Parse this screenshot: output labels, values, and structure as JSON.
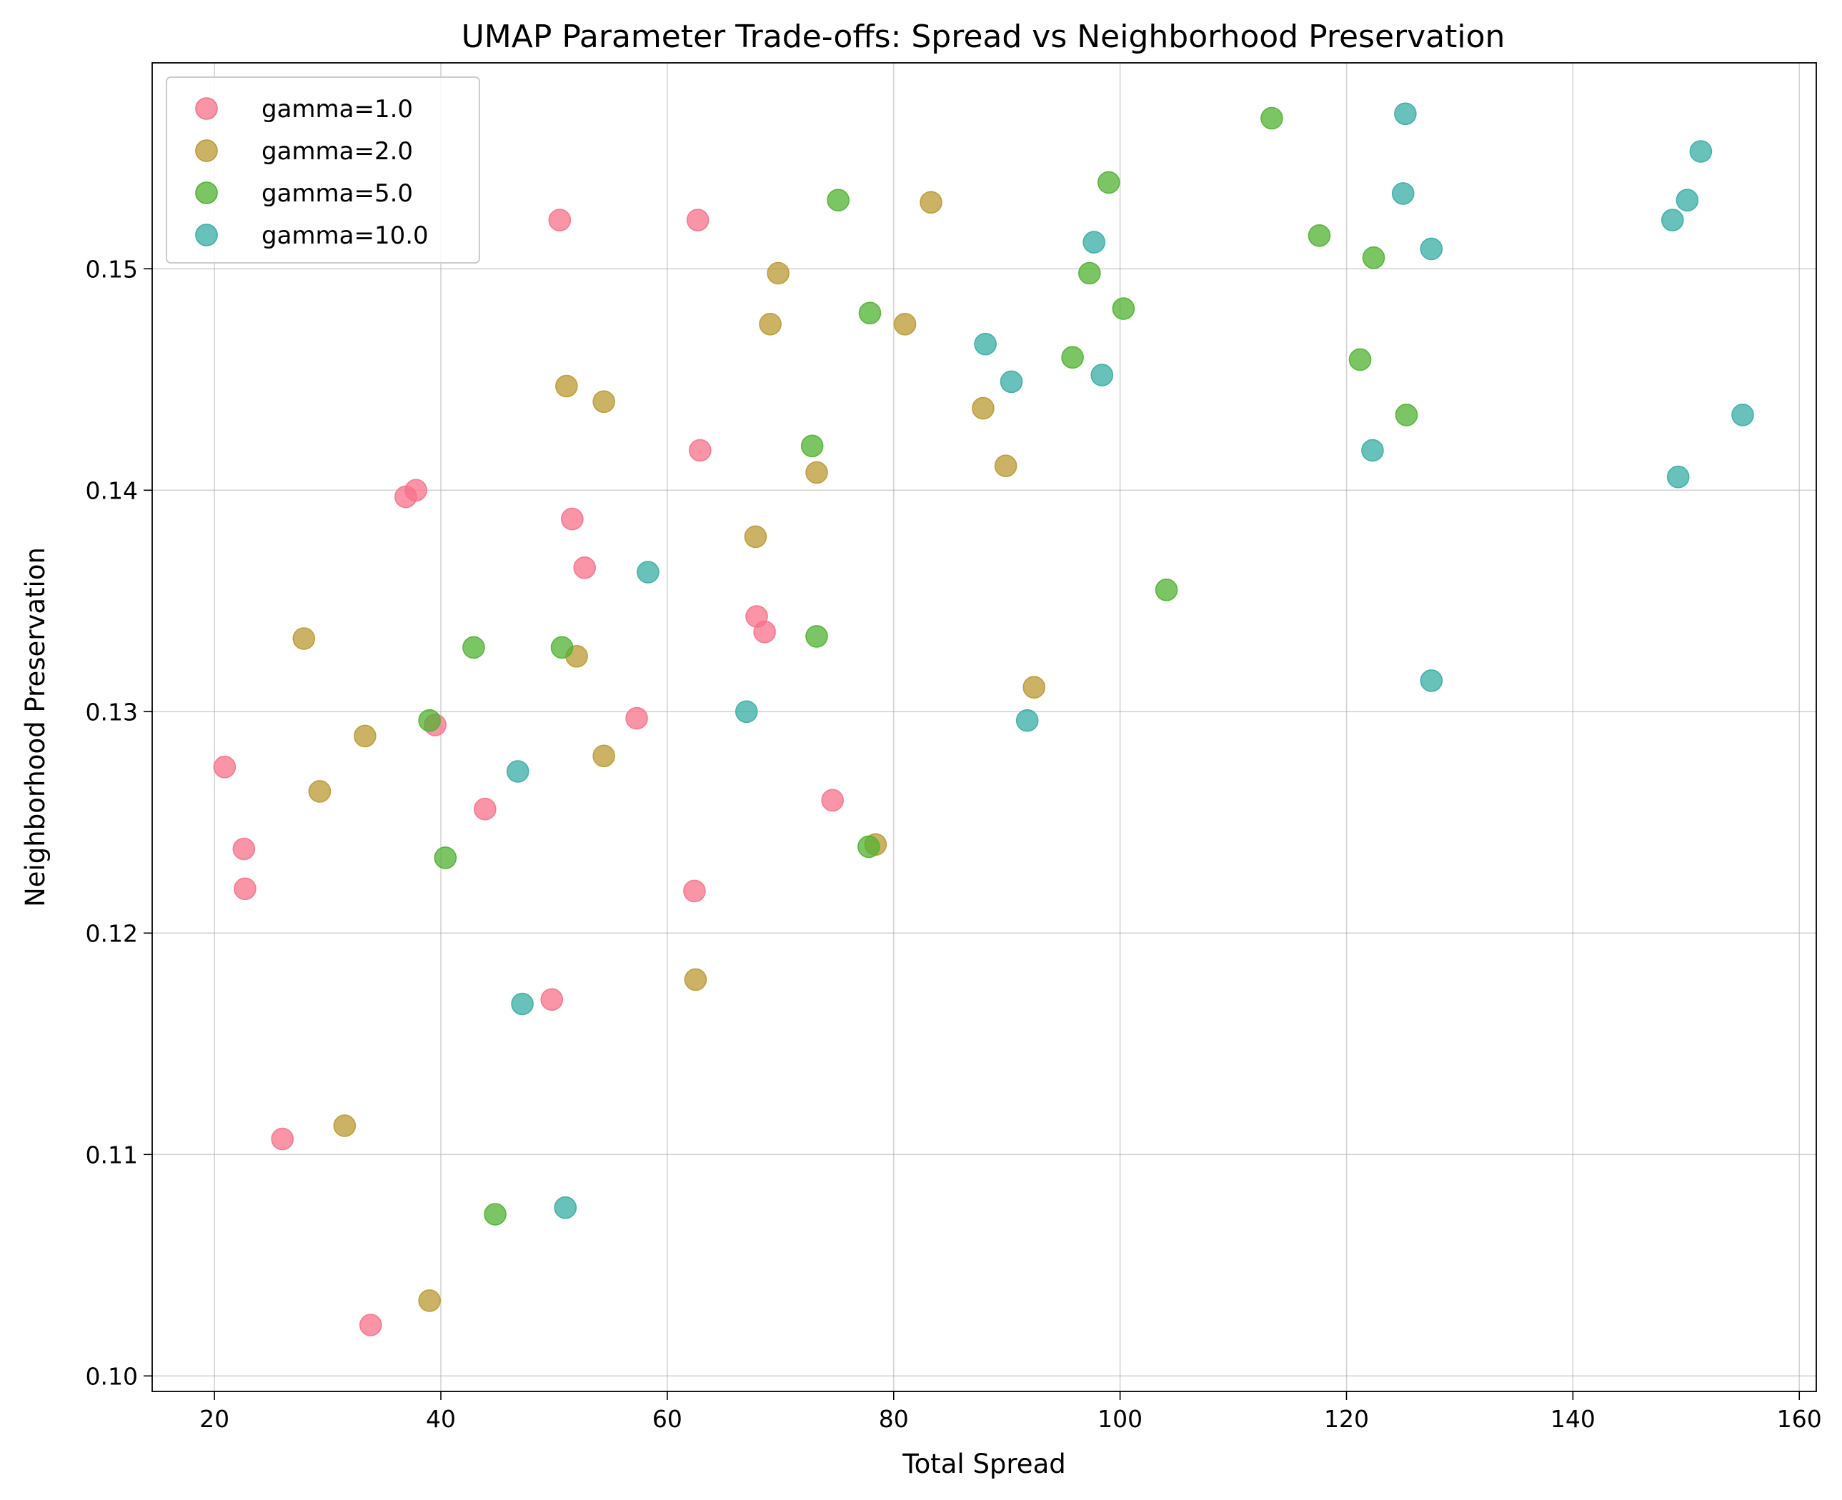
{
  "chart_data": {
    "type": "scatter",
    "title": "UMAP Parameter Trade-offs: Spread vs Neighborhood Preservation",
    "xlabel": "Total Spread",
    "ylabel": "Neighborhood Preservation",
    "xlim": [
      14.5,
      161.5
    ],
    "ylim": [
      0.0993,
      0.1593
    ],
    "x_ticks": [
      20,
      40,
      60,
      80,
      100,
      120,
      140,
      160
    ],
    "y_ticks": [
      0.1,
      0.11,
      0.12,
      0.13,
      0.14,
      0.15
    ],
    "x_tick_labels": [
      "20",
      "40",
      "60",
      "80",
      "100",
      "120",
      "140",
      "160"
    ],
    "y_tick_labels": [
      "0.10",
      "0.11",
      "0.12",
      "0.13",
      "0.14",
      "0.15"
    ],
    "grid": true,
    "legend_position": "top-left",
    "series": [
      {
        "name": "gamma=1.0",
        "color": "#f77189",
        "points": [
          [
            50.5,
            0.1522
          ],
          [
            62.7,
            0.1522
          ],
          [
            62.9,
            0.1418
          ],
          [
            37.8,
            0.14
          ],
          [
            36.9,
            0.1397
          ],
          [
            51.6,
            0.1387
          ],
          [
            52.7,
            0.1365
          ],
          [
            67.9,
            0.1343
          ],
          [
            68.6,
            0.1336
          ],
          [
            57.3,
            0.1297
          ],
          [
            39.5,
            0.1294
          ],
          [
            20.9,
            0.1275
          ],
          [
            74.6,
            0.126
          ],
          [
            43.9,
            0.1256
          ],
          [
            22.6,
            0.1238
          ],
          [
            22.7,
            0.122
          ],
          [
            62.4,
            0.1219
          ],
          [
            49.8,
            0.117
          ],
          [
            26.0,
            0.1107
          ],
          [
            33.8,
            0.1023
          ]
        ]
      },
      {
        "name": "gamma=2.0",
        "color": "#bb9832",
        "points": [
          [
            83.3,
            0.153
          ],
          [
            69.8,
            0.1498
          ],
          [
            69.1,
            0.1475
          ],
          [
            81.0,
            0.1475
          ],
          [
            51.1,
            0.1447
          ],
          [
            54.4,
            0.144
          ],
          [
            87.9,
            0.1437
          ],
          [
            73.2,
            0.1408
          ],
          [
            89.9,
            0.1411
          ],
          [
            67.8,
            0.1379
          ],
          [
            27.9,
            0.1333
          ],
          [
            52.0,
            0.1325
          ],
          [
            92.4,
            0.1311
          ],
          [
            33.3,
            0.1289
          ],
          [
            54.4,
            0.128
          ],
          [
            29.3,
            0.1264
          ],
          [
            78.4,
            0.124
          ],
          [
            62.5,
            0.1179
          ],
          [
            31.5,
            0.1113
          ],
          [
            39.0,
            0.1034
          ]
        ]
      },
      {
        "name": "gamma=5.0",
        "color": "#50b131",
        "points": [
          [
            113.4,
            0.1568
          ],
          [
            99.0,
            0.1539
          ],
          [
            75.1,
            0.1531
          ],
          [
            117.6,
            0.1515
          ],
          [
            122.4,
            0.1505
          ],
          [
            97.3,
            0.1498
          ],
          [
            100.3,
            0.1482
          ],
          [
            77.9,
            0.148
          ],
          [
            95.8,
            0.146
          ],
          [
            121.2,
            0.1459
          ],
          [
            125.3,
            0.1434
          ],
          [
            72.8,
            0.142
          ],
          [
            104.1,
            0.1355
          ],
          [
            73.2,
            0.1334
          ],
          [
            42.9,
            0.1329
          ],
          [
            50.7,
            0.1329
          ],
          [
            39.0,
            0.1296
          ],
          [
            77.8,
            0.1239
          ],
          [
            40.4,
            0.1234
          ],
          [
            44.8,
            0.1073
          ]
        ]
      },
      {
        "name": "gamma=10.0",
        "color": "#36ada4",
        "points": [
          [
            125.2,
            0.157
          ],
          [
            151.3,
            0.1553
          ],
          [
            125.0,
            0.1534
          ],
          [
            150.1,
            0.1531
          ],
          [
            148.8,
            0.1522
          ],
          [
            97.7,
            0.1512
          ],
          [
            127.5,
            0.1509
          ],
          [
            88.1,
            0.1466
          ],
          [
            98.4,
            0.1452
          ],
          [
            90.4,
            0.1449
          ],
          [
            155.0,
            0.1434
          ],
          [
            122.3,
            0.1418
          ],
          [
            149.3,
            0.1406
          ],
          [
            58.3,
            0.1363
          ],
          [
            127.5,
            0.1314
          ],
          [
            67.0,
            0.13
          ],
          [
            91.8,
            0.1296
          ],
          [
            46.8,
            0.1273
          ],
          [
            47.2,
            0.1168
          ],
          [
            51.0,
            0.1076
          ]
        ]
      }
    ]
  }
}
